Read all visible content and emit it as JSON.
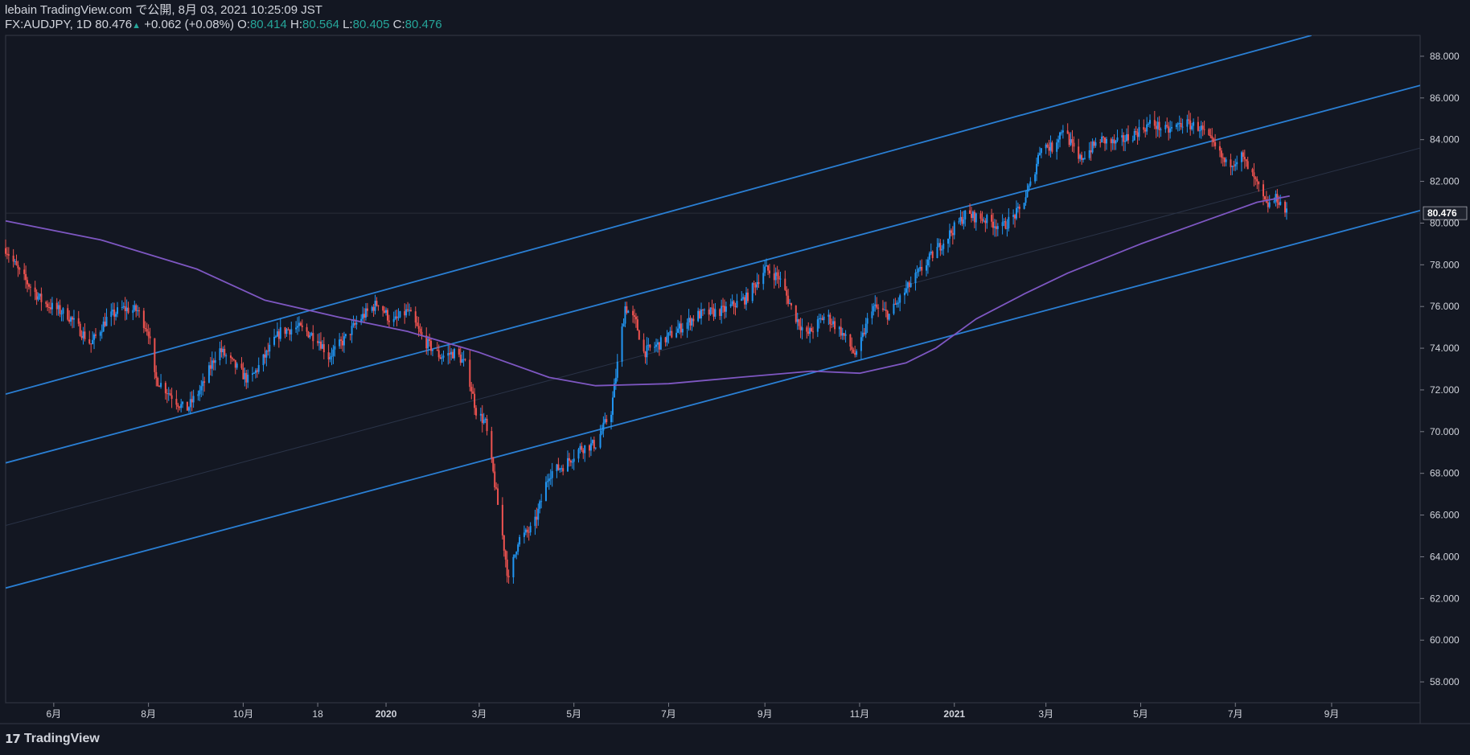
{
  "header": {
    "line1": "lebain TradingView.com で公開, 8月 03, 2021 10:25:09 JST",
    "symbol": "FX:AUDJPY, 1D 80.476",
    "change": "+0.062 (+0.08%)",
    "o_label": "O:",
    "o_value": "80.414",
    "h_label": "H:",
    "h_value": "80.564",
    "l_label": "L:",
    "l_value": "80.405",
    "c_label": "C:",
    "c_value": "80.476"
  },
  "footer": {
    "brand": "TradingView",
    "icon": "tradingview-logo-icon"
  },
  "colors": {
    "background": "#131722",
    "up": "#2196f3",
    "down": "#ef5350",
    "channel": "#2a7fd4",
    "ma": "#7e57c2",
    "text": "#d1d4dc",
    "accent": "#26a69a"
  },
  "chart_data": {
    "type": "candlestick",
    "x_range": [
      "2019-05-01",
      "2021-10-28"
    ],
    "ylim": [
      57,
      89
    ],
    "y_ticks": [
      "58.000",
      "60.000",
      "62.000",
      "64.000",
      "66.000",
      "68.000",
      "70.000",
      "72.000",
      "74.000",
      "76.000",
      "78.000",
      "80.000",
      "82.000",
      "84.000",
      "86.000",
      "88.000"
    ],
    "last_price_label": "80.476",
    "last_price": 80.476,
    "x_ticks": [
      {
        "date": "2019-06-01",
        "label": "6月"
      },
      {
        "date": "2019-08-01",
        "label": "8月"
      },
      {
        "date": "2019-10-01",
        "label": "10月"
      },
      {
        "date": "2019-11-18",
        "label": "18"
      },
      {
        "date": "2020-01-01",
        "label": "2020"
      },
      {
        "date": "2020-03-01",
        "label": "3月"
      },
      {
        "date": "2020-05-01",
        "label": "5月"
      },
      {
        "date": "2020-07-01",
        "label": "7月"
      },
      {
        "date": "2020-09-01",
        "label": "9月"
      },
      {
        "date": "2020-11-01",
        "label": "11月"
      },
      {
        "date": "2021-01-01",
        "label": "2021"
      },
      {
        "date": "2021-03-01",
        "label": "3月"
      },
      {
        "date": "2021-05-01",
        "label": "5月"
      },
      {
        "date": "2021-07-01",
        "label": "7月"
      },
      {
        "date": "2021-09-01",
        "label": "9月"
      }
    ],
    "price_path": [
      [
        "2019-05-01",
        78.8
      ],
      [
        "2019-05-10",
        77.6
      ],
      [
        "2019-05-25",
        76.2
      ],
      [
        "2019-06-10",
        75.6
      ],
      [
        "2019-06-25",
        74.2
      ],
      [
        "2019-07-05",
        75.4
      ],
      [
        "2019-07-15",
        75.9
      ],
      [
        "2019-07-25",
        75.8
      ],
      [
        "2019-08-01",
        74.8
      ],
      [
        "2019-08-05",
        72.6
      ],
      [
        "2019-08-15",
        71.8
      ],
      [
        "2019-08-25",
        71.0
      ],
      [
        "2019-09-05",
        72.2
      ],
      [
        "2019-09-15",
        74.0
      ],
      [
        "2019-09-25",
        73.2
      ],
      [
        "2019-10-05",
        72.4
      ],
      [
        "2019-10-15",
        73.6
      ],
      [
        "2019-10-25",
        74.8
      ],
      [
        "2019-11-05",
        75.0
      ],
      [
        "2019-11-18",
        74.5
      ],
      [
        "2019-11-25",
        73.6
      ],
      [
        "2019-12-05",
        74.4
      ],
      [
        "2019-12-15",
        75.4
      ],
      [
        "2019-12-27",
        76.2
      ],
      [
        "2020-01-05",
        75.2
      ],
      [
        "2020-01-15",
        75.8
      ],
      [
        "2020-01-25",
        74.4
      ],
      [
        "2020-02-05",
        73.6
      ],
      [
        "2020-02-15",
        73.8
      ],
      [
        "2020-02-22",
        73.1
      ],
      [
        "2020-02-28",
        71.0
      ],
      [
        "2020-03-05",
        70.4
      ],
      [
        "2020-03-10",
        68.0
      ],
      [
        "2020-03-16",
        65.0
      ],
      [
        "2020-03-20",
        62.8
      ],
      [
        "2020-03-26",
        64.8
      ],
      [
        "2020-04-05",
        65.4
      ],
      [
        "2020-04-15",
        68.0
      ],
      [
        "2020-04-25",
        68.4
      ],
      [
        "2020-05-05",
        69.2
      ],
      [
        "2020-05-15",
        69.4
      ],
      [
        "2020-05-25",
        71.0
      ],
      [
        "2020-06-03",
        76.0
      ],
      [
        "2020-06-10",
        75.2
      ],
      [
        "2020-06-15",
        73.8
      ],
      [
        "2020-06-25",
        74.2
      ],
      [
        "2020-07-05",
        74.8
      ],
      [
        "2020-07-20",
        75.6
      ],
      [
        "2020-08-05",
        75.8
      ],
      [
        "2020-08-20",
        76.4
      ],
      [
        "2020-09-01",
        77.8
      ],
      [
        "2020-09-10",
        77.4
      ],
      [
        "2020-09-20",
        75.6
      ],
      [
        "2020-09-28",
        74.6
      ],
      [
        "2020-10-10",
        75.6
      ],
      [
        "2020-10-20",
        74.8
      ],
      [
        "2020-10-30",
        73.6
      ],
      [
        "2020-11-09",
        76.0
      ],
      [
        "2020-11-20",
        75.6
      ],
      [
        "2020-12-01",
        76.8
      ],
      [
        "2020-12-15",
        78.2
      ],
      [
        "2020-12-28",
        79.4
      ],
      [
        "2021-01-08",
        80.4
      ],
      [
        "2021-01-20",
        80.2
      ],
      [
        "2021-02-01",
        79.8
      ],
      [
        "2021-02-12",
        80.6
      ],
      [
        "2021-02-20",
        82.0
      ],
      [
        "2021-02-26",
        83.8
      ],
      [
        "2021-03-05",
        83.6
      ],
      [
        "2021-03-12",
        84.6
      ],
      [
        "2021-03-22",
        83.0
      ],
      [
        "2021-04-05",
        84.0
      ],
      [
        "2021-04-15",
        83.8
      ],
      [
        "2021-04-25",
        84.2
      ],
      [
        "2021-05-08",
        84.8
      ],
      [
        "2021-05-18",
        84.4
      ],
      [
        "2021-05-28",
        84.8
      ],
      [
        "2021-06-08",
        84.6
      ],
      [
        "2021-06-18",
        83.6
      ],
      [
        "2021-06-25",
        82.8
      ],
      [
        "2021-07-05",
        83.2
      ],
      [
        "2021-07-15",
        81.8
      ],
      [
        "2021-07-21",
        80.8
      ],
      [
        "2021-07-28",
        81.2
      ],
      [
        "2021-08-03",
        80.476
      ]
    ],
    "moving_average": {
      "color": "#7e57c2",
      "points": [
        [
          "2019-05-01",
          80.1
        ],
        [
          "2019-07-01",
          79.2
        ],
        [
          "2019-09-01",
          77.8
        ],
        [
          "2019-10-15",
          76.3
        ],
        [
          "2019-12-01",
          75.5
        ],
        [
          "2020-01-15",
          74.8
        ],
        [
          "2020-03-01",
          73.8
        ],
        [
          "2020-04-15",
          72.6
        ],
        [
          "2020-05-15",
          72.2
        ],
        [
          "2020-07-01",
          72.3
        ],
        [
          "2020-08-15",
          72.6
        ],
        [
          "2020-10-01",
          72.9
        ],
        [
          "2020-11-01",
          72.8
        ],
        [
          "2020-12-01",
          73.3
        ],
        [
          "2020-12-20",
          74.0
        ],
        [
          "2021-01-15",
          75.4
        ],
        [
          "2021-02-15",
          76.6
        ],
        [
          "2021-03-15",
          77.6
        ],
        [
          "2021-05-01",
          79.0
        ],
        [
          "2021-06-15",
          80.2
        ],
        [
          "2021-07-15",
          81.0
        ],
        [
          "2021-08-05",
          81.3
        ]
      ]
    },
    "channel_lines": [
      {
        "name": "upper",
        "from": [
          "2019-05-01",
          71.8
        ],
        "to": [
          "2021-08-19",
          89.0
        ]
      },
      {
        "name": "middle",
        "from": [
          "2019-05-01",
          68.5
        ],
        "to": [
          "2021-10-28",
          86.6
        ]
      },
      {
        "name": "lower",
        "from": [
          "2019-05-01",
          62.5
        ],
        "to": [
          "2021-10-28",
          80.6
        ]
      },
      {
        "name": "center-faint",
        "from": [
          "2019-05-01",
          65.5
        ],
        "to": [
          "2021-10-28",
          83.6
        ]
      }
    ]
  }
}
